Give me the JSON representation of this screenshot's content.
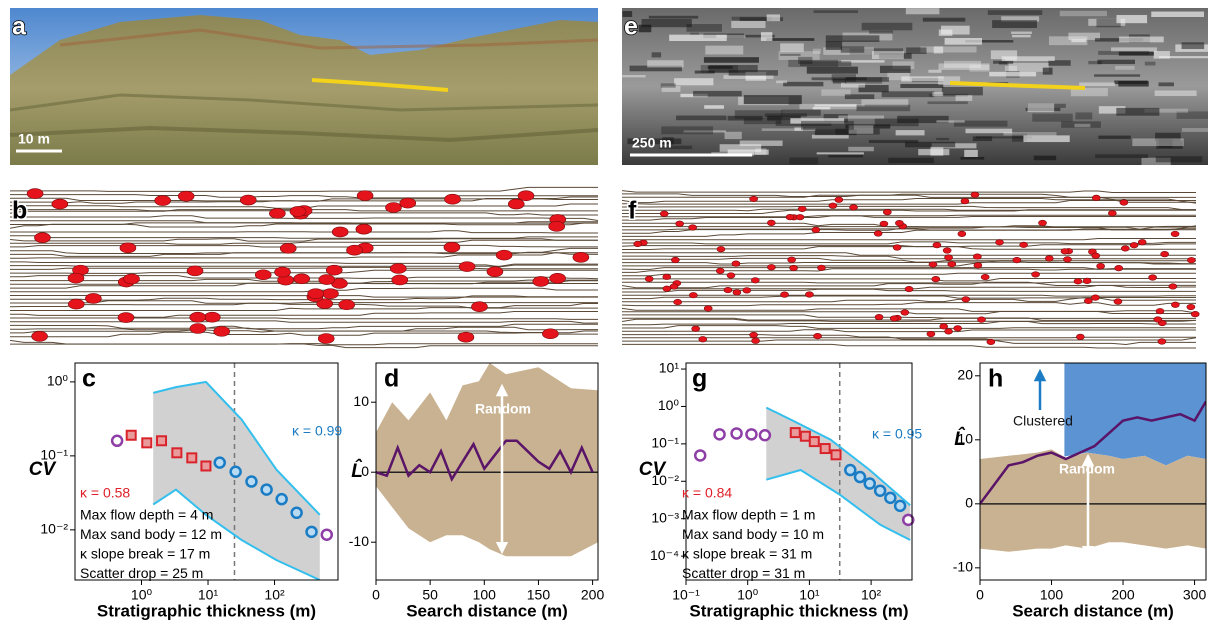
{
  "photo_panels": [
    {
      "label": "a",
      "scale_bar": "10 m"
    },
    {
      "label": "e",
      "scale_bar": "250 m"
    }
  ],
  "section_panels": [
    {
      "label": "b"
    },
    {
      "label": "f"
    }
  ],
  "chart_data": [
    {
      "label": "c",
      "type": "scatter",
      "xlabel": "Stratigraphic thickness (m)",
      "ylabel": "CV",
      "log_x": true,
      "log_y": true,
      "xlim": [
        0.1,
        900
      ],
      "ylim": [
        0.0021,
        1.8
      ],
      "xticks": [
        {
          "value": 1,
          "label": "10⁰"
        },
        {
          "value": 10,
          "label": "10¹"
        },
        {
          "value": 100,
          "label": "10²"
        }
      ],
      "yticks": [
        {
          "value": 1,
          "label": "10⁰"
        },
        {
          "value": 0.1,
          "label": "10⁻¹"
        },
        {
          "value": 0.01,
          "label": "10⁻²"
        }
      ],
      "vline": 25,
      "series": [
        {
          "kind": "line",
          "color": "#33bfee",
          "x": [
            1.5,
            3.3,
            9.3,
            32,
            107,
            480
          ],
          "y": [
            0.71,
            0.85,
            1.0,
            0.31,
            0.065,
            0.016
          ]
        },
        {
          "kind": "line",
          "color": "#33bfee",
          "x": [
            1.5,
            3.3,
            9.3,
            32,
            107,
            480
          ],
          "y": [
            0.022,
            0.035,
            0.016,
            0.0073,
            0.0039,
            0.0021
          ]
        },
        {
          "kind": "circle",
          "color": "#8e3fa6",
          "x": [
            0.43,
            610
          ],
          "y": [
            0.16,
            0.0086
          ]
        },
        {
          "kind": "square",
          "color": "#d9232b",
          "x": [
            0.7,
            1.2,
            2.0,
            3.4,
            5.7,
            9.3
          ],
          "y": [
            0.19,
            0.15,
            0.16,
            0.11,
            0.094,
            0.073
          ]
        },
        {
          "kind": "circle",
          "color": "#1a7cc4",
          "x": [
            15,
            26,
            45,
            76,
            128,
            215,
            360
          ],
          "y": [
            0.081,
            0.061,
            0.045,
            0.035,
            0.026,
            0.017,
            0.0094
          ]
        }
      ],
      "kappa_labels": [
        {
          "text": "κ = 0.99",
          "color": "#1a7cc4"
        },
        {
          "text": "κ = 0.58",
          "color": "#e0202a"
        }
      ],
      "notes": [
        "Max flow depth = 4 m",
        "Max sand body = 12 m",
        "κ slope break = 17 m",
        "Scatter drop = 25 m"
      ]
    },
    {
      "label": "d",
      "type": "line",
      "xlabel": "Search distance (m)",
      "ylabel": "L̂",
      "log_x": false,
      "log_y": false,
      "xlim": [
        0,
        205
      ],
      "ylim": [
        -15.4,
        15.6
      ],
      "xticks": [
        0,
        50,
        100,
        150,
        200
      ],
      "yticks": [
        10,
        0,
        -10
      ],
      "hline": 0,
      "series": [
        {
          "kind": "band",
          "color": "#c9b291",
          "x": [
            0,
            15,
            30,
            50,
            65,
            80,
            95,
            105,
            120,
            150,
            180,
            205
          ],
          "upper": [
            5.7,
            10,
            7.4,
            11.4,
            7.4,
            12.4,
            13,
            15.6,
            14,
            15,
            12,
            11.7
          ],
          "lower": [
            -2,
            -5,
            -8,
            -10,
            -9,
            -9,
            -10,
            -11,
            -12,
            -12,
            -12,
            -10
          ]
        },
        {
          "kind": "line",
          "color": "#5a1468",
          "x": [
            0,
            10,
            20,
            30,
            40,
            50,
            60,
            70,
            80,
            90,
            100,
            110,
            120,
            130,
            140,
            150,
            160,
            170,
            180,
            190,
            200
          ],
          "y": [
            0,
            -0.5,
            3.5,
            -0.5,
            1,
            0,
            3,
            -1,
            1.5,
            4,
            0.5,
            2.5,
            4.5,
            4.5,
            3,
            1.5,
            0.5,
            3,
            0,
            3.5,
            0
          ]
        }
      ],
      "annotations": [
        {
          "text": "Random",
          "color": "#ffffff"
        }
      ]
    },
    {
      "label": "g",
      "type": "scatter",
      "xlabel": "Stratigraphic thickness (m)",
      "ylabel": "CV",
      "log_x": true,
      "log_y": true,
      "xlim": [
        0.1,
        460
      ],
      "ylim": [
        2.3e-05,
        14.5
      ],
      "xticks": [
        {
          "value": 0.1,
          "label": "10⁻¹"
        },
        {
          "value": 1,
          "label": "10⁰"
        },
        {
          "value": 10,
          "label": "10¹"
        },
        {
          "value": 100,
          "label": "10²"
        }
      ],
      "yticks": [
        {
          "value": 10,
          "label": "10¹"
        },
        {
          "value": 1,
          "label": "10⁰"
        },
        {
          "value": 0.1,
          "label": "10⁻¹"
        },
        {
          "value": 0.01,
          "label": "10⁻²"
        },
        {
          "value": 0.001,
          "label": "10⁻³"
        },
        {
          "value": 0.0001,
          "label": "10⁻⁴"
        }
      ],
      "vline": 31,
      "series": [
        {
          "kind": "line",
          "color": "#33bfee",
          "x": [
            2.0,
            4.9,
            22,
            95,
            430
          ],
          "y": [
            0.93,
            0.45,
            0.13,
            0.02,
            0.0023
          ]
        },
        {
          "kind": "line",
          "color": "#33bfee",
          "x": [
            2.0,
            7.2,
            31,
            140,
            430
          ],
          "y": [
            0.011,
            0.02,
            0.0044,
            0.00069,
            0.00027
          ]
        },
        {
          "kind": "circle",
          "color": "#8e3fa6",
          "x": [
            0.17,
            0.35,
            0.66,
            1.15,
            1.9,
            400
          ],
          "y": [
            0.049,
            0.18,
            0.19,
            0.18,
            0.17,
            0.00093
          ]
        },
        {
          "kind": "square",
          "color": "#d9232b",
          "x": [
            5.9,
            8.6,
            12,
            18,
            27
          ],
          "y": [
            0.2,
            0.16,
            0.115,
            0.075,
            0.051
          ]
        },
        {
          "kind": "circle",
          "color": "#1a7cc4",
          "x": [
            46,
            66,
            95,
            140,
            205,
            295
          ],
          "y": [
            0.02,
            0.013,
            0.0087,
            0.0056,
            0.0036,
            0.0022
          ]
        }
      ],
      "kappa_labels": [
        {
          "text": "κ = 0.95",
          "color": "#1a7cc4"
        },
        {
          "text": "κ = 0.84",
          "color": "#e0202a"
        }
      ],
      "notes": [
        "Max flow depth = 1 m",
        "Max sand body = 10 m",
        "κ slope break = 31 m",
        "Scatter drop = 31 m"
      ]
    },
    {
      "label": "h",
      "type": "line",
      "xlabel": "Search distance (m)",
      "ylabel": "L̂",
      "log_x": false,
      "log_y": false,
      "xlim": [
        0,
        316
      ],
      "ylim": [
        -11.9,
        22
      ],
      "xticks": [
        0,
        100,
        200,
        300
      ],
      "yticks": [
        20,
        10,
        0,
        -10
      ],
      "hline": 0,
      "series": [
        {
          "kind": "region",
          "color": "#5b93d3",
          "x": [
            118,
            150,
            180,
            200,
            230,
            260,
            290,
            316
          ],
          "lower": [
            7.4,
            8,
            7.5,
            7,
            7.5,
            6,
            7.5,
            7
          ]
        },
        {
          "kind": "band",
          "color": "#c9b291",
          "x": [
            0,
            40,
            80,
            100,
            120,
            150,
            180,
            200,
            230,
            260,
            290,
            316
          ],
          "upper": [
            7,
            7.5,
            8,
            8.5,
            7.2,
            8,
            7.5,
            7,
            7.5,
            6,
            7.5,
            7
          ],
          "lower": [
            -7,
            -7.5,
            -7,
            -7,
            -6.5,
            -7,
            -6,
            -6,
            -6.5,
            -7,
            -6.5,
            -7
          ]
        },
        {
          "kind": "line",
          "color": "#5a1468",
          "x": [
            0,
            20,
            40,
            60,
            80,
            100,
            120,
            140,
            160,
            180,
            200,
            220,
            240,
            260,
            280,
            300,
            316
          ],
          "y": [
            0,
            3,
            6,
            6.5,
            7.5,
            8,
            7,
            8,
            9,
            11,
            13,
            13.5,
            13,
            13.5,
            14,
            13,
            16
          ]
        }
      ],
      "annotations": [
        {
          "text": "Clustered",
          "color": "#111111"
        },
        {
          "text": "Random",
          "color": "#ffffff"
        }
      ]
    }
  ]
}
